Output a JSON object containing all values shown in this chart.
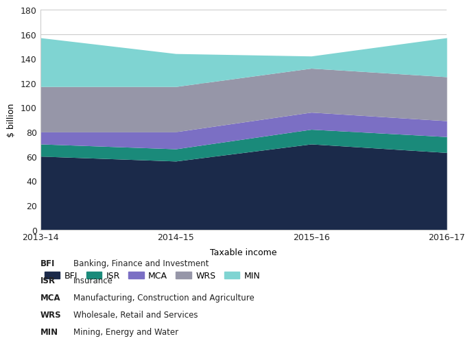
{
  "years": [
    "2013–14",
    "2014–15",
    "2015–16",
    "2016–17"
  ],
  "series": {
    "BFI": [
      60,
      56,
      70,
      63
    ],
    "ISR": [
      10,
      10,
      12,
      13
    ],
    "MCA": [
      10,
      14,
      14,
      13
    ],
    "WRS": [
      37,
      37,
      36,
      36
    ],
    "MIN": [
      40,
      27,
      10,
      32
    ]
  },
  "colors": {
    "BFI": "#1b2a4a",
    "ISR": "#1a8a7a",
    "MCA": "#7b6fc4",
    "WRS": "#9696a8",
    "MIN": "#7fd4d2"
  },
  "labels": {
    "BFI": "BFI",
    "ISR": "ISR",
    "MCA": "MCA",
    "WRS": "WRS",
    "MIN": "MIN"
  },
  "full_labels": {
    "BFI": "Banking, Finance and Investment",
    "ISR": "Insurance",
    "MCA": "Manufacturing, Construction and Agriculture",
    "WRS": "Wholesale, Retail and Services",
    "MIN": "Mining, Energy and Water"
  },
  "ylabel": "$ billion",
  "xlabel": "Taxable income",
  "ylim": [
    0,
    180
  ],
  "yticks": [
    0,
    20,
    40,
    60,
    80,
    100,
    120,
    140,
    160,
    180
  ],
  "background_color": "#ffffff",
  "grid_color": "#cccccc"
}
